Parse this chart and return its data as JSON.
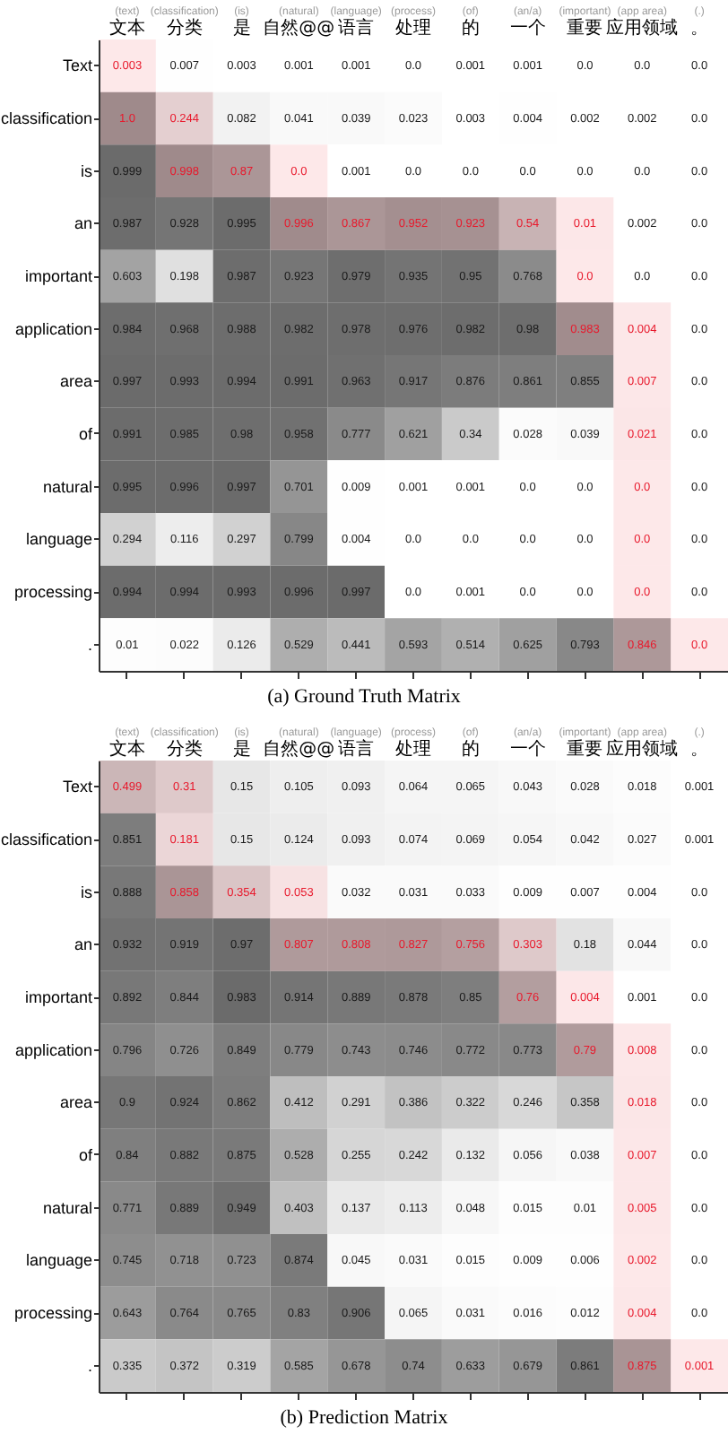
{
  "chart_data": [
    {
      "type": "heatmap",
      "title": "(a) Ground Truth Matrix",
      "categories": [
        "(text)\n文本",
        "(classification)\n分类",
        "(is)\n是",
        "(natural)\n自然@@",
        "(language)\n语言",
        "(process)\n处理",
        "(of)\n的",
        "(an/a)\n一个",
        "(important)\n重要",
        "(app area)\n应用领域",
        "(.)\n。"
      ],
      "y_categories": [
        "Text",
        "classification",
        "is",
        "an",
        "important",
        "application",
        "area",
        "of",
        "natural",
        "language",
        "processing",
        "."
      ],
      "cells": [
        [
          0.003,
          0.007,
          0.003,
          0.001,
          0.001,
          0,
          0.001,
          0.001,
          0,
          0,
          0
        ],
        [
          1,
          0.244,
          0.082,
          0.041,
          0.039,
          0.023,
          0.003,
          0.004,
          0.002,
          0.002,
          0
        ],
        [
          0.999,
          0.998,
          0.87,
          0,
          0.001,
          0,
          0,
          0,
          0,
          0,
          0
        ],
        [
          0.987,
          0.928,
          0.995,
          0.996,
          0.867,
          0.952,
          0.923,
          0.54,
          0.01,
          0.002,
          0
        ],
        [
          0.603,
          0.198,
          0.987,
          0.923,
          0.979,
          0.935,
          0.95,
          0.768,
          0,
          0,
          0
        ],
        [
          0.984,
          0.968,
          0.988,
          0.982,
          0.978,
          0.976,
          0.982,
          0.98,
          0.983,
          0.004,
          0
        ],
        [
          0.997,
          0.993,
          0.994,
          0.991,
          0.963,
          0.917,
          0.876,
          0.861,
          0.855,
          0.007,
          0
        ],
        [
          0.991,
          0.985,
          0.98,
          0.958,
          0.777,
          0.621,
          0.34,
          0.028,
          0.039,
          0.021,
          0
        ],
        [
          0.995,
          0.996,
          0.997,
          0.701,
          0.009,
          0.001,
          0.001,
          0,
          0,
          0,
          0
        ],
        [
          0.294,
          0.116,
          0.297,
          0.799,
          0.004,
          0,
          0,
          0,
          0,
          0,
          0
        ],
        [
          0.994,
          0.994,
          0.993,
          0.996,
          0.997,
          0,
          0.001,
          0,
          0,
          0,
          0
        ],
        [
          0.01,
          0.022,
          0.126,
          0.529,
          0.441,
          0.593,
          0.514,
          0.625,
          0.793,
          0.846,
          0
        ]
      ],
      "cell_labels": [
        [
          "0.003",
          "0.007",
          "0.003",
          "0.001",
          "0.001",
          "0.0",
          "0.001",
          "0.001",
          "0.0",
          "0.0",
          "0.0"
        ],
        [
          "1.0",
          "0.244",
          "0.082",
          "0.041",
          "0.039",
          "0.023",
          "0.003",
          "0.004",
          "0.002",
          "0.002",
          "0.0"
        ],
        [
          "0.999",
          "0.998",
          "0.87",
          "0.0",
          "0.001",
          "0.0",
          "0.0",
          "0.0",
          "0.0",
          "0.0",
          "0.0"
        ],
        [
          "0.987",
          "0.928",
          "0.995",
          "0.996",
          "0.867",
          "0.952",
          "0.923",
          "0.54",
          "0.01",
          "0.002",
          "0.0"
        ],
        [
          "0.603",
          "0.198",
          "0.987",
          "0.923",
          "0.979",
          "0.935",
          "0.95",
          "0.768",
          "0.0",
          "0.0",
          "0.0"
        ],
        [
          "0.984",
          "0.968",
          "0.988",
          "0.982",
          "0.978",
          "0.976",
          "0.982",
          "0.98",
          "0.983",
          "0.004",
          "0.0"
        ],
        [
          "0.997",
          "0.993",
          "0.994",
          "0.991",
          "0.963",
          "0.917",
          "0.876",
          "0.861",
          "0.855",
          "0.007",
          "0.0"
        ],
        [
          "0.991",
          "0.985",
          "0.98",
          "0.958",
          "0.777",
          "0.621",
          "0.34",
          "0.028",
          "0.039",
          "0.021",
          "0.0"
        ],
        [
          "0.995",
          "0.996",
          "0.997",
          "0.701",
          "0.009",
          "0.001",
          "0.001",
          "0.0",
          "0.0",
          "0.0",
          "0.0"
        ],
        [
          "0.294",
          "0.116",
          "0.297",
          "0.799",
          "0.004",
          "0.0",
          "0.0",
          "0.0",
          "0.0",
          "0.0",
          "0.0"
        ],
        [
          "0.994",
          "0.994",
          "0.993",
          "0.996",
          "0.997",
          "0.0",
          "0.001",
          "0.0",
          "0.0",
          "0.0",
          "0.0"
        ],
        [
          "0.01",
          "0.022",
          "0.126",
          "0.529",
          "0.441",
          "0.593",
          "0.514",
          "0.625",
          "0.793",
          "0.846",
          "0.0"
        ]
      ],
      "colors": [
        [
          "#e8192c",
          null,
          null,
          null,
          null,
          null,
          null,
          null,
          null,
          null,
          null
        ],
        [
          "#e8192c",
          "#e8192c",
          null,
          null,
          null,
          null,
          null,
          null,
          null,
          null,
          null
        ],
        [
          null,
          "#e8192c",
          "#e8192c",
          "#e8192c",
          null,
          null,
          null,
          null,
          null,
          null,
          null
        ],
        [
          null,
          null,
          null,
          "#e8192c",
          "#e8192c",
          "#e8192c",
          "#e8192c",
          "#e8192c",
          "#e8192c",
          null,
          null
        ],
        [
          null,
          null,
          null,
          null,
          null,
          null,
          null,
          null,
          "#e8192c",
          null,
          null
        ],
        [
          null,
          null,
          null,
          null,
          null,
          null,
          null,
          null,
          "#e8192c",
          "#e8192c",
          null
        ],
        [
          null,
          null,
          null,
          null,
          null,
          null,
          null,
          null,
          null,
          "#e8192c",
          null
        ],
        [
          null,
          null,
          null,
          null,
          null,
          null,
          null,
          null,
          null,
          "#e8192c",
          null
        ],
        [
          null,
          null,
          null,
          null,
          null,
          null,
          null,
          null,
          null,
          "#e8192c",
          null
        ],
        [
          null,
          null,
          null,
          null,
          null,
          null,
          null,
          null,
          null,
          "#e8192c",
          null
        ],
        [
          null,
          null,
          null,
          null,
          null,
          null,
          null,
          null,
          null,
          "#e8192c",
          null
        ],
        [
          null,
          null,
          null,
          null,
          null,
          null,
          null,
          null,
          null,
          "#e8192c",
          "#e8192c"
        ]
      ]
    },
    {
      "type": "heatmap",
      "title": "(b) Prediction Matrix",
      "categories": [
        "(text)\n文本",
        "(classification)\n分类",
        "(is)\n是",
        "(natural)\n自然@@",
        "(language)\n语言",
        "(process)\n处理",
        "(of)\n的",
        "(an/a)\n一个",
        "(important)\n重要",
        "(app area)\n应用领域",
        "(.)\n。"
      ],
      "y_categories": [
        "Text",
        "classification",
        "is",
        "an",
        "important",
        "application",
        "area",
        "of",
        "natural",
        "language",
        "processing",
        "."
      ],
      "cells": [
        [
          0.499,
          0.31,
          0.15,
          0.105,
          0.093,
          0.064,
          0.065,
          0.043,
          0.028,
          0.018,
          0.001
        ],
        [
          0.851,
          0.181,
          0.15,
          0.124,
          0.093,
          0.074,
          0.069,
          0.054,
          0.042,
          0.027,
          0.001
        ],
        [
          0.888,
          0.858,
          0.354,
          0.053,
          0.032,
          0.031,
          0.033,
          0.009,
          0.007,
          0.004,
          0
        ],
        [
          0.932,
          0.919,
          0.97,
          0.807,
          0.808,
          0.827,
          0.756,
          0.303,
          0.18,
          0.044,
          0
        ],
        [
          0.892,
          0.844,
          0.983,
          0.914,
          0.889,
          0.878,
          0.85,
          0.76,
          0.004,
          0.001,
          0
        ],
        [
          0.796,
          0.726,
          0.849,
          0.779,
          0.743,
          0.746,
          0.772,
          0.773,
          0.79,
          0.008,
          0
        ],
        [
          0.9,
          0.924,
          0.862,
          0.412,
          0.291,
          0.386,
          0.322,
          0.246,
          0.358,
          0.018,
          0
        ],
        [
          0.84,
          0.882,
          0.875,
          0.528,
          0.255,
          0.242,
          0.132,
          0.056,
          0.038,
          0.007,
          0
        ],
        [
          0.771,
          0.889,
          0.949,
          0.403,
          0.137,
          0.113,
          0.048,
          0.015,
          0.01,
          0.005,
          0
        ],
        [
          0.745,
          0.718,
          0.723,
          0.874,
          0.045,
          0.031,
          0.015,
          0.009,
          0.006,
          0.002,
          0
        ],
        [
          0.643,
          0.764,
          0.765,
          0.83,
          0.906,
          0.065,
          0.031,
          0.016,
          0.012,
          0.004,
          0
        ],
        [
          0.335,
          0.372,
          0.319,
          0.585,
          0.678,
          0.74,
          0.633,
          0.679,
          0.861,
          0.875,
          0.001
        ]
      ],
      "cell_labels": [
        [
          "0.499",
          "0.31",
          "0.15",
          "0.105",
          "0.093",
          "0.064",
          "0.065",
          "0.043",
          "0.028",
          "0.018",
          "0.001"
        ],
        [
          "0.851",
          "0.181",
          "0.15",
          "0.124",
          "0.093",
          "0.074",
          "0.069",
          "0.054",
          "0.042",
          "0.027",
          "0.001"
        ],
        [
          "0.888",
          "0.858",
          "0.354",
          "0.053",
          "0.032",
          "0.031",
          "0.033",
          "0.009",
          "0.007",
          "0.004",
          "0.0"
        ],
        [
          "0.932",
          "0.919",
          "0.97",
          "0.807",
          "0.808",
          "0.827",
          "0.756",
          "0.303",
          "0.18",
          "0.044",
          "0.0"
        ],
        [
          "0.892",
          "0.844",
          "0.983",
          "0.914",
          "0.889",
          "0.878",
          "0.85",
          "0.76",
          "0.004",
          "0.001",
          "0.0"
        ],
        [
          "0.796",
          "0.726",
          "0.849",
          "0.779",
          "0.743",
          "0.746",
          "0.772",
          "0.773",
          "0.79",
          "0.008",
          "0.0"
        ],
        [
          "0.9",
          "0.924",
          "0.862",
          "0.412",
          "0.291",
          "0.386",
          "0.322",
          "0.246",
          "0.358",
          "0.018",
          "0.0"
        ],
        [
          "0.84",
          "0.882",
          "0.875",
          "0.528",
          "0.255",
          "0.242",
          "0.132",
          "0.056",
          "0.038",
          "0.007",
          "0.0"
        ],
        [
          "0.771",
          "0.889",
          "0.949",
          "0.403",
          "0.137",
          "0.113",
          "0.048",
          "0.015",
          "0.01",
          "0.005",
          "0.0"
        ],
        [
          "0.745",
          "0.718",
          "0.723",
          "0.874",
          "0.045",
          "0.031",
          "0.015",
          "0.009",
          "0.006",
          "0.002",
          "0.0"
        ],
        [
          "0.643",
          "0.764",
          "0.765",
          "0.83",
          "0.906",
          "0.065",
          "0.031",
          "0.016",
          "0.012",
          "0.004",
          "0.0"
        ],
        [
          "0.335",
          "0.372",
          "0.319",
          "0.585",
          "0.678",
          "0.74",
          "0.633",
          "0.679",
          "0.861",
          "0.875",
          "0.001"
        ]
      ],
      "colors": [
        [
          "#e8192c",
          "#e8192c",
          null,
          null,
          null,
          null,
          null,
          null,
          null,
          null,
          null
        ],
        [
          null,
          "#e8192c",
          null,
          null,
          null,
          null,
          null,
          null,
          null,
          null,
          null
        ],
        [
          null,
          "#e8192c",
          "#e8192c",
          "#e8192c",
          null,
          null,
          null,
          null,
          null,
          null,
          null
        ],
        [
          null,
          null,
          null,
          "#e8192c",
          "#e8192c",
          "#e8192c",
          "#e8192c",
          "#e8192c",
          null,
          null,
          null
        ],
        [
          null,
          null,
          null,
          null,
          null,
          null,
          null,
          "#e8192c",
          "#e8192c",
          null,
          null
        ],
        [
          null,
          null,
          null,
          null,
          null,
          null,
          null,
          null,
          "#e8192c",
          "#e8192c",
          null
        ],
        [
          null,
          null,
          null,
          null,
          null,
          null,
          null,
          null,
          null,
          "#e8192c",
          null
        ],
        [
          null,
          null,
          null,
          null,
          null,
          null,
          null,
          null,
          null,
          "#e8192c",
          null
        ],
        [
          null,
          null,
          null,
          null,
          null,
          null,
          null,
          null,
          null,
          "#e8192c",
          null
        ],
        [
          null,
          null,
          null,
          null,
          null,
          null,
          null,
          null,
          null,
          "#e8192c",
          null
        ],
        [
          null,
          null,
          null,
          null,
          null,
          null,
          null,
          null,
          null,
          "#e8192c",
          null
        ],
        [
          null,
          null,
          null,
          null,
          null,
          null,
          null,
          null,
          null,
          "#e8192c",
          "#e8192c"
        ]
      ]
    }
  ]
}
